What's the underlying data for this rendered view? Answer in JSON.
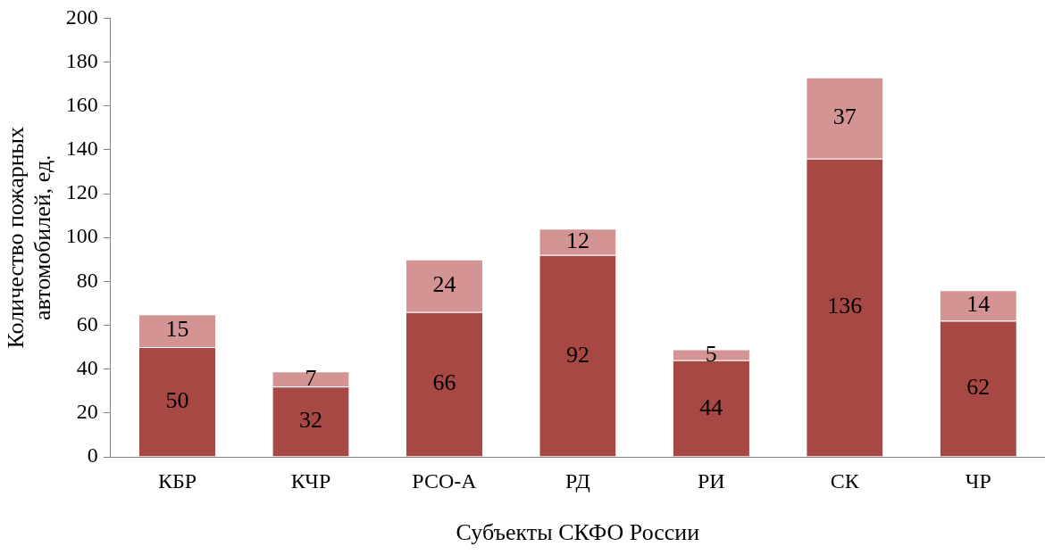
{
  "chart_data": {
    "type": "bar",
    "stacked": true,
    "xlabel": "Субъекты СКФО России",
    "ylabel": "Количество пожарных\nавтомобилей, ед.",
    "categories": [
      "КБР",
      "КЧР",
      "РСО-А",
      "РД",
      "РИ",
      "СК",
      "ЧР"
    ],
    "series": [
      {
        "color": "#a84845",
        "values": [
          50,
          32,
          66,
          92,
          44,
          136,
          62
        ]
      },
      {
        "color": "#d49494",
        "values": [
          15,
          7,
          24,
          12,
          5,
          37,
          14
        ]
      }
    ],
    "ylim": [
      0,
      200
    ],
    "yticks": [
      0,
      20,
      40,
      60,
      80,
      100,
      120,
      140,
      160,
      180,
      200
    ],
    "grid": false,
    "legend": false,
    "data_labels": true
  }
}
